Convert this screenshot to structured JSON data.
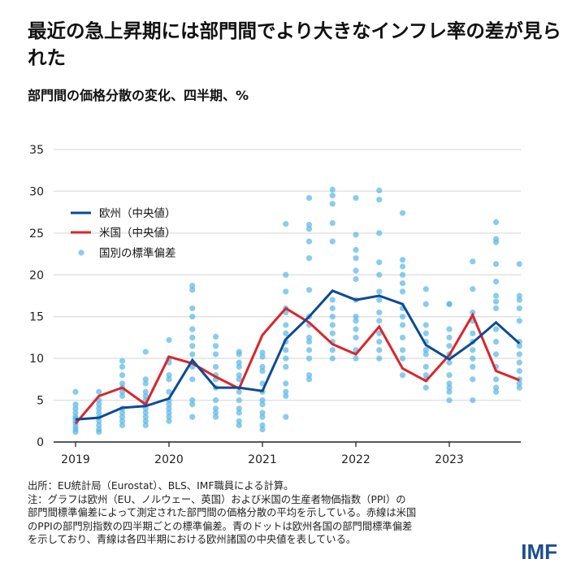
{
  "title": "最近の急上昇期には部門間でより大きなインフレ率の差が見られた",
  "subtitle": "部門間の価格分散の変化、四半期、%",
  "notes": [
    "出所：EU統計局（Eurostat）、BLS、IMF職員による計算。",
    "注：グラフは欧州（EU、ノルウェー、英国）および米国の生産者物価指数（PPI）の",
    "部門間標準偏差によって測定された部門間の価格分散の平均を示している。赤線は米国",
    "のPPIの部門別指数の四半期ごとの標準偏差。青のドットは欧州各国の部門間標準偏差",
    "を示しており、青線は各四半期における欧州諸国の中央値を表している。"
  ],
  "logo": "IMF",
  "chart_data": {
    "type": "line",
    "x": [
      "2019Q1",
      "2019Q2",
      "2019Q3",
      "2019Q4",
      "2020Q1",
      "2020Q2",
      "2020Q3",
      "2020Q4",
      "2021Q1",
      "2021Q2",
      "2021Q3",
      "2021Q4",
      "2022Q1",
      "2022Q2",
      "2022Q3",
      "2022Q4",
      "2023Q1",
      "2023Q2",
      "2023Q3",
      "2023Q4"
    ],
    "xticks": [
      "2019",
      "2020",
      "2021",
      "2022",
      "2023"
    ],
    "yticks": [
      "0",
      "5",
      "10",
      "15",
      "20",
      "25",
      "30",
      "35"
    ],
    "ylim": [
      0,
      35
    ],
    "grid": true,
    "legend_position": "top-left",
    "colors": {
      "europe": "#0d4a94",
      "us": "#d9262c",
      "dots": "#5bb8e6"
    },
    "series": [
      {
        "name": "欧州（中央値）",
        "values": [
          2.7,
          2.9,
          4.1,
          4.3,
          5.2,
          9.8,
          6.5,
          6.5,
          6.1,
          12.3,
          15.0,
          18.1,
          17.0,
          17.5,
          16.5,
          11.6,
          9.9,
          11.9,
          14.3,
          11.8
        ]
      },
      {
        "name": "米国（中央値）",
        "values": [
          2.2,
          5.5,
          6.5,
          4.5,
          10.2,
          9.4,
          7.8,
          6.4,
          12.8,
          16.0,
          14.3,
          11.7,
          10.5,
          13.8,
          8.8,
          7.3,
          10.4,
          15.2,
          8.5,
          7.4
        ]
      }
    ],
    "scatter": {
      "name": "国別の標準偏差",
      "values": [
        [
          6.0,
          4.5,
          4,
          3.5,
          3,
          2.8,
          2.5,
          2.2,
          1.8,
          1.5,
          1.2
        ],
        [
          6.0,
          5,
          4.5,
          4,
          3.5,
          3,
          2.5,
          2,
          1.5,
          1.2
        ],
        [
          9.7,
          9,
          8,
          7,
          6.5,
          6,
          5.5,
          4,
          3.5,
          3,
          2.5,
          2
        ],
        [
          10.8,
          7.5,
          7,
          6,
          5.5,
          5,
          4.5,
          4,
          3.5,
          3,
          2.5,
          2
        ],
        [
          12.2,
          10,
          9.5,
          8,
          7.5,
          6,
          5,
          4.5,
          4,
          3.5,
          3,
          2.5
        ],
        [
          18.7,
          18.2,
          16,
          15,
          13.5,
          12.5,
          11.5,
          10.5,
          9,
          7.5,
          5,
          4.5,
          3
        ],
        [
          12.6,
          11.5,
          10.5,
          9,
          8,
          7.5,
          6.5,
          5,
          4,
          3.5,
          3
        ],
        [
          10.8,
          10.5,
          9.5,
          9,
          8,
          7.5,
          6,
          5,
          4,
          3.5,
          2.5,
          2
        ],
        [
          10.7,
          10.2,
          9,
          8.5,
          7,
          6,
          5,
          4.5,
          3.5,
          3,
          2,
          1.5
        ],
        [
          26.1,
          20,
          18,
          16,
          15.5,
          14,
          13,
          12,
          11,
          10,
          9,
          7,
          6,
          5.5,
          3
        ],
        [
          29.2,
          26,
          25.5,
          24,
          22,
          18.2,
          15,
          14,
          12.5,
          12,
          11,
          10,
          8,
          7.5
        ],
        [
          30.2,
          29.5,
          28.5,
          26.2,
          24,
          17,
          16,
          15,
          14,
          13,
          12,
          11,
          10
        ],
        [
          29.2,
          24.8,
          23,
          22,
          20.5,
          19.5,
          17,
          15,
          14.5,
          13.5,
          12.5,
          11,
          10
        ],
        [
          30.1,
          29,
          25,
          21.5,
          20,
          18,
          17,
          15.5,
          14.5,
          13,
          12,
          11,
          10
        ],
        [
          27.4,
          21.8,
          21,
          20,
          19,
          18,
          16,
          15,
          14,
          12.5,
          11,
          10,
          8
        ],
        [
          18.3,
          16.5,
          14,
          13,
          12,
          11,
          10.5,
          9,
          8,
          7.5,
          6.5
        ],
        [
          16.5,
          16.5,
          13.5,
          12.5,
          11.5,
          10.5,
          9.5,
          8,
          7,
          6.5,
          6,
          5
        ],
        [
          21.6,
          18.3,
          15.5,
          14.5,
          13,
          12,
          11,
          10,
          9,
          7.5,
          5
        ],
        [
          26.3,
          24.3,
          23.9,
          21.3,
          19.2,
          17.5,
          16.8,
          16,
          13.5,
          12,
          10.5,
          9,
          7.5,
          6.5,
          6
        ],
        [
          21.3,
          17.5,
          17,
          16,
          14.5,
          12,
          11.5,
          10.5,
          9.5,
          8.5,
          7.5,
          7,
          6.5
        ]
      ]
    }
  }
}
